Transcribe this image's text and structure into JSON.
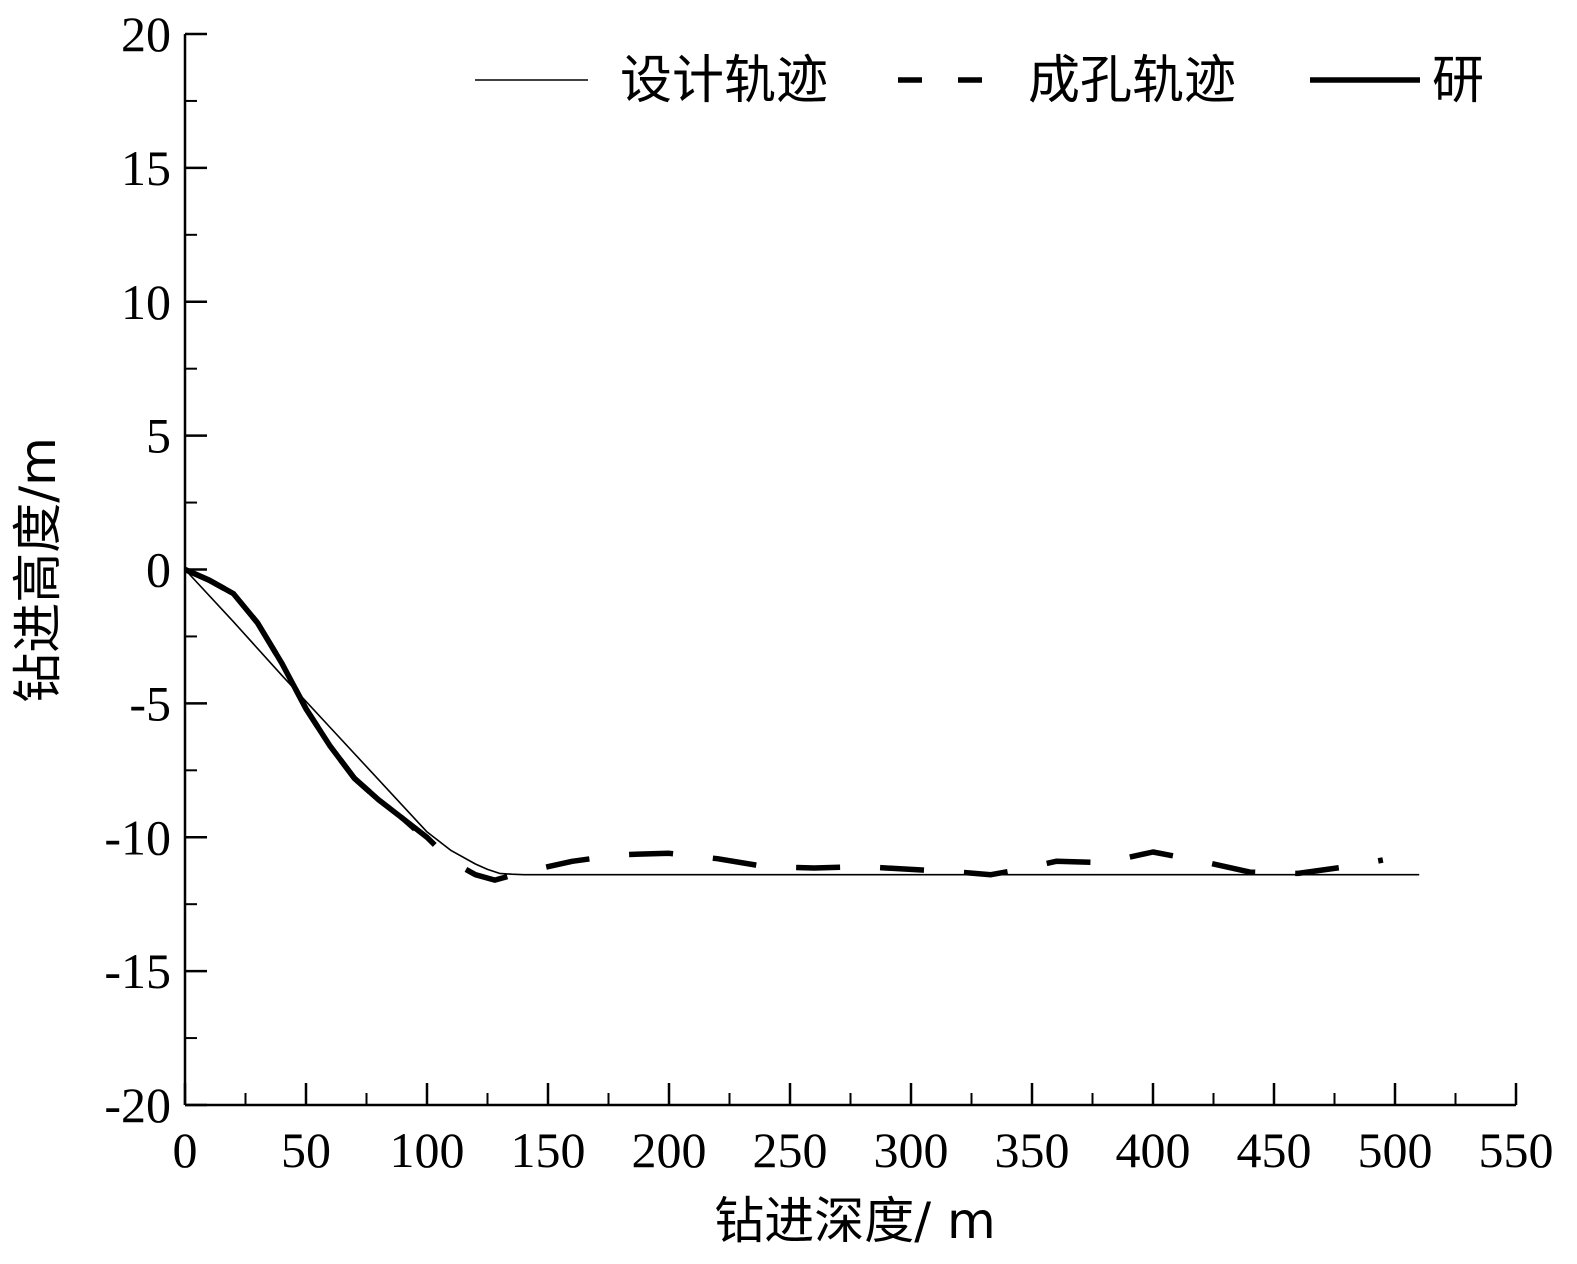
{
  "chart_data": {
    "type": "line",
    "xlabel": "钻进深度/ m",
    "ylabel": "钻进高度/m",
    "xlim": [
      0,
      550
    ],
    "ylim": [
      -20,
      20
    ],
    "x_ticks": [
      0,
      50,
      100,
      150,
      200,
      250,
      300,
      350,
      400,
      450,
      500,
      550
    ],
    "y_ticks": [
      20,
      15,
      10,
      5,
      0,
      -5,
      -10,
      -15,
      -20
    ],
    "x_tick_labels": [
      "0",
      "50",
      "100",
      "150",
      "200",
      "250",
      "300",
      "350",
      "400",
      "450",
      "500",
      "550"
    ],
    "y_tick_labels": [
      "20",
      "15",
      "10",
      "5",
      "0",
      "-5",
      "-10",
      "-15",
      "-20"
    ],
    "grid": false,
    "legend_position": "top-right",
    "series": [
      {
        "name": "设计轨迹",
        "style": "thin-solid",
        "color": "#000000",
        "x": [
          0,
          20,
          40,
          60,
          80,
          100,
          110,
          120,
          125,
          130,
          135,
          140,
          200,
          300,
          400,
          500,
          510
        ],
        "y": [
          0,
          -1.95,
          -3.95,
          -5.9,
          -7.85,
          -9.8,
          -10.5,
          -11.0,
          -11.2,
          -11.35,
          -11.38,
          -11.4,
          -11.4,
          -11.4,
          -11.4,
          -11.4,
          -11.4
        ]
      },
      {
        "name": "成孔轨迹",
        "style": "thick-dashed",
        "color": "#000000",
        "x": [
          0,
          10,
          20,
          30,
          40,
          50,
          60,
          70,
          80,
          90,
          100,
          110,
          120,
          128,
          140,
          160,
          180,
          200,
          220,
          240,
          260,
          280,
          300,
          320,
          333,
          345,
          360,
          380,
          400,
          420,
          440,
          460,
          480,
          495
        ],
        "y": [
          0,
          -0.4,
          -0.9,
          -2.0,
          -3.5,
          -5.2,
          -6.6,
          -7.8,
          -8.6,
          -9.3,
          -10.0,
          -10.9,
          -11.4,
          -11.6,
          -11.3,
          -10.9,
          -10.65,
          -10.6,
          -10.8,
          -11.1,
          -11.15,
          -11.1,
          -11.2,
          -11.3,
          -11.4,
          -11.2,
          -10.9,
          -10.95,
          -10.55,
          -10.9,
          -11.3,
          -11.35,
          -11.1,
          -10.85
        ]
      },
      {
        "name": "研",
        "style": "thick-solid",
        "color": "#000000",
        "x": [
          0,
          10,
          20,
          30,
          40,
          50,
          60,
          70,
          80,
          90,
          95
        ],
        "y": [
          0,
          -0.4,
          -0.9,
          -2.0,
          -3.5,
          -5.2,
          -6.6,
          -7.8,
          -8.6,
          -9.3,
          -9.7
        ]
      }
    ]
  }
}
